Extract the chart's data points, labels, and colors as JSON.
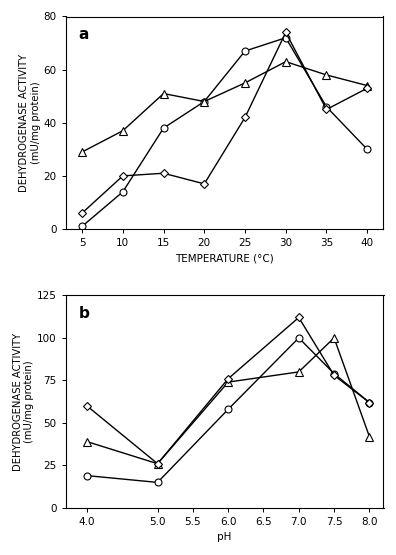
{
  "panel_a": {
    "xlabel": "TEMPERATURE (°C)",
    "ylabel": "DEHYDROGENASE ACTIVITY\n(mU/mg protein)",
    "label": "a",
    "xlim": [
      3,
      42
    ],
    "ylim": [
      0,
      80
    ],
    "xticks": [
      5,
      10,
      15,
      20,
      25,
      30,
      35,
      40
    ],
    "yticks": [
      0,
      20,
      40,
      60,
      80
    ],
    "series": [
      {
        "x": [
          5,
          10,
          15,
          20,
          25,
          30,
          35,
          40
        ],
        "y": [
          1,
          14,
          38,
          48,
          67,
          72,
          46,
          30
        ],
        "marker": "o",
        "markersize": 5,
        "linewidth": 1.0
      },
      {
        "x": [
          5,
          10,
          15,
          20,
          25,
          30,
          35,
          40
        ],
        "y": [
          29,
          37,
          51,
          48,
          55,
          63,
          58,
          54
        ],
        "marker": "^",
        "markersize": 6,
        "linewidth": 1.0
      },
      {
        "x": [
          5,
          10,
          15,
          20,
          25,
          30,
          35,
          40
        ],
        "y": [
          6,
          20,
          21,
          17,
          42,
          74,
          45,
          53
        ],
        "marker": "D",
        "markersize": 4,
        "linewidth": 1.0
      }
    ]
  },
  "panel_b": {
    "xlabel": "pH",
    "ylabel": "DEHYDROGENASE ACTIVITY\n(mU/mg protein)",
    "label": "b",
    "xlim": [
      3.7,
      8.2
    ],
    "ylim": [
      0,
      125
    ],
    "xticks": [
      4.0,
      5.0,
      5.5,
      6.0,
      6.5,
      7.0,
      7.5,
      8.0
    ],
    "xtick_labels": [
      "4.0",
      "5.0",
      "5.5",
      "6.0",
      "6.5",
      "7.0",
      "7.5",
      "8.0"
    ],
    "yticks": [
      0,
      25,
      50,
      75,
      100,
      125
    ],
    "series": [
      {
        "x": [
          4.0,
          5.0,
          6.0,
          7.0,
          7.5,
          8.0
        ],
        "y": [
          19,
          15,
          58,
          100,
          79,
          62
        ],
        "marker": "o",
        "markersize": 5,
        "linewidth": 1.0
      },
      {
        "x": [
          4.0,
          5.0,
          6.0,
          7.0,
          7.5,
          8.0
        ],
        "y": [
          39,
          26,
          74,
          80,
          100,
          42
        ],
        "marker": "^",
        "markersize": 6,
        "linewidth": 1.0
      },
      {
        "x": [
          4.0,
          5.0,
          6.0,
          7.0,
          7.5,
          8.0
        ],
        "y": [
          60,
          26,
          76,
          112,
          78,
          62
        ],
        "marker": "D",
        "markersize": 4,
        "linewidth": 1.0
      }
    ]
  },
  "background_color": "#ffffff",
  "face_color": "#ffffff",
  "label_fontsize": 7.5,
  "tick_fontsize": 7.5,
  "panel_label_fontsize": 11
}
